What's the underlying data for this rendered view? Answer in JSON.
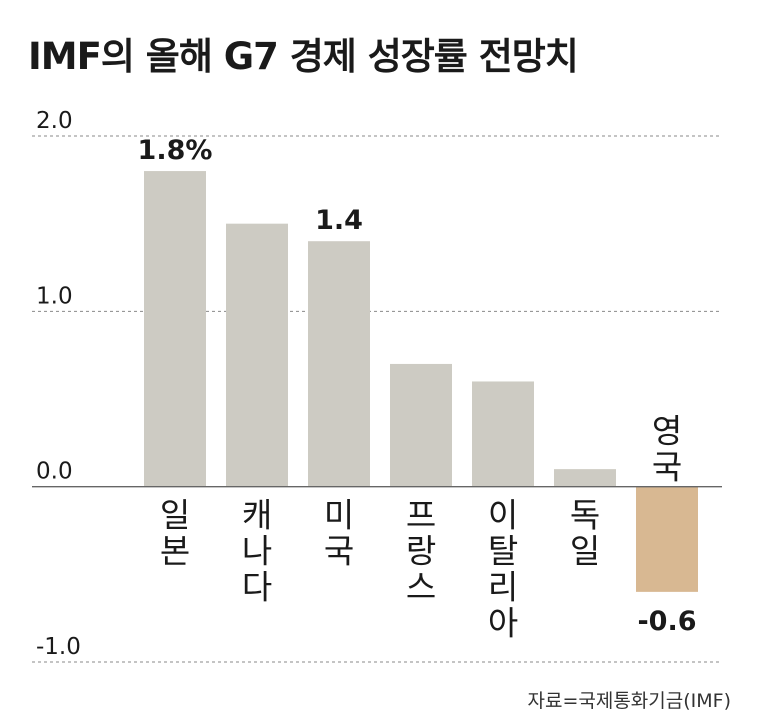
{
  "title": "IMF의 올해 G7 경제 성장률 전망치",
  "source": "자료=국제통화기금(IMF)",
  "colors": {
    "positive_bar": "#cdcbc3",
    "negative_bar": "#d8b892",
    "grid": "#8a8a8a",
    "axis": "#666666",
    "text": "#1a1a1a"
  },
  "chart_data": {
    "type": "bar",
    "title": "IMF의 올해 G7 경제 성장률 전망치",
    "xlabel": "",
    "ylabel": "",
    "categories": [
      "일본",
      "캐나다",
      "미국",
      "프랑스",
      "이탈리아",
      "독일",
      "영국"
    ],
    "values": [
      1.8,
      1.5,
      1.4,
      0.7,
      0.6,
      0.1,
      -0.6
    ],
    "ylim": [
      -1.0,
      2.0
    ],
    "yticks": [
      2.0,
      1.0,
      0.0,
      -1.0
    ],
    "ytick_labels": [
      "2.0",
      "1.0",
      "0.0",
      "-1.0"
    ],
    "data_labels": [
      {
        "index": 0,
        "text": "1.8%"
      },
      {
        "index": 2,
        "text": "1.4"
      },
      {
        "index": 6,
        "text": "-0.6"
      }
    ],
    "grid": true,
    "legend": "none"
  }
}
